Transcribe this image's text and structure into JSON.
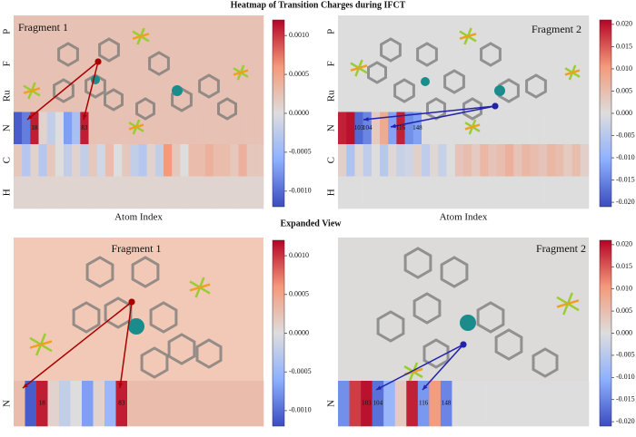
{
  "title": "Heatmap of Transition Charges during IFCT",
  "subtitle": "Expanded View",
  "chart_data": [
    {
      "type": "heatmap",
      "title": "Fragment 1",
      "xlabel": "Atom Index",
      "cmap": "coolwarm",
      "clim": [
        -0.0012,
        0.0012
      ],
      "cticks": [
        {
          "value": 0.001,
          "label": "0.0010"
        },
        {
          "value": 0.0005,
          "label": "0.0005"
        },
        {
          "value": 0,
          "label": "0.0000"
        },
        {
          "value": -0.0005,
          "label": "-0.0005"
        },
        {
          "value": -0.001,
          "label": "-0.0010"
        }
      ],
      "rows": [
        {
          "name": "P",
          "values": [
            0.00025,
            0.00025
          ]
        },
        {
          "name": "F",
          "values": [
            0.00025,
            0.00025,
            0.00025,
            0.00025,
            0.00025,
            0.00025
          ]
        },
        {
          "name": "Ru",
          "values": [
            0.00025,
            0.00025
          ]
        },
        {
          "name": "N",
          "values": [
            -0.0011,
            -0.0009,
            0.0011,
            0.0001,
            -0.0002,
            0,
            -0.0007,
            -0.0004,
            0.0011,
            0.00025,
            0.00025,
            0.00025,
            0.00025,
            0.00025,
            0.00025,
            0.00025,
            0.00025,
            0.00025,
            0.00025,
            0.00025,
            0.00025,
            0.00025,
            0.00025,
            0.00025,
            0.00025,
            0.00025,
            0.00025,
            0.00025,
            0.00025,
            0.00025
          ],
          "labels": [
            null,
            null,
            "18",
            null,
            null,
            null,
            null,
            null,
            "83",
            null,
            null,
            null,
            null,
            null,
            null,
            null,
            null,
            null,
            null,
            null,
            null,
            null,
            null,
            null,
            null,
            null,
            null,
            null,
            null,
            null
          ]
        },
        {
          "name": "C",
          "values": [
            0.0002,
            -0.0003,
            0.0001,
            -0.0003,
            0.0002,
            0,
            -0.0002,
            0.0001,
            -0.0002,
            0.0002,
            -0.0001,
            0.0003,
            0,
            0.0002,
            -0.0002,
            -0.0003,
            0.0001,
            -0.0002,
            0.0006,
            0.0002,
            0,
            0.0003,
            0.0003,
            0.0004,
            0.0003,
            0.0003,
            0.0002,
            0.0004,
            0.0002,
            0.0002
          ]
        },
        {
          "name": "H",
          "values": [
            8e-05,
            8e-05,
            8e-05,
            8e-05,
            8e-05,
            8e-05,
            8e-05,
            8e-05,
            8e-05,
            8e-05
          ]
        }
      ]
    },
    {
      "type": "heatmap",
      "title": "Fragment 2",
      "xlabel": "Atom Index",
      "cmap": "coolwarm",
      "clim": [
        -0.021,
        0.021
      ],
      "cticks": [
        {
          "value": 0.02,
          "label": "0.020"
        },
        {
          "value": 0.015,
          "label": "0.015"
        },
        {
          "value": 0.01,
          "label": "0.010"
        },
        {
          "value": 0.005,
          "label": "0.005"
        },
        {
          "value": 0,
          "label": "0.000"
        },
        {
          "value": -0.005,
          "label": "-0.005"
        },
        {
          "value": -0.01,
          "label": "-0.010"
        },
        {
          "value": -0.015,
          "label": "-0.015"
        },
        {
          "value": -0.02,
          "label": "-0.020"
        }
      ],
      "rows": [
        {
          "name": "P",
          "values": [
            0,
            0
          ]
        },
        {
          "name": "F",
          "values": [
            0,
            0,
            0,
            0,
            0,
            0
          ]
        },
        {
          "name": "Ru",
          "values": [
            0,
            0
          ]
        },
        {
          "name": "N",
          "values": [
            0.019,
            0.02,
            -0.018,
            -0.015,
            0.003,
            0.008,
            -0.012,
            0.019,
            -0.014,
            -0.012,
            0,
            0,
            0,
            0,
            0,
            0,
            0,
            0,
            0,
            0,
            0,
            0,
            0,
            0,
            0,
            0,
            0,
            0,
            0,
            0
          ],
          "labels": [
            null,
            null,
            "103",
            "104",
            null,
            null,
            null,
            "116",
            null,
            "148",
            null,
            null,
            null,
            null,
            null,
            null,
            null,
            null,
            null,
            null,
            null,
            null,
            null,
            null,
            null,
            null,
            null,
            null,
            null,
            null
          ]
        },
        {
          "name": "C",
          "values": [
            0.002,
            -0.006,
            0.001,
            -0.004,
            0,
            -0.005,
            0.001,
            -0.003,
            -0.002,
            0.002,
            -0.004,
            0.001,
            -0.003,
            0,
            0.004,
            0.005,
            0.003,
            0.006,
            0.004,
            0.005,
            0.007,
            0.004,
            0.006,
            0.005,
            0.004,
            0.006,
            0.005,
            0.003,
            0.005,
            0.002
          ]
        },
        {
          "name": "H",
          "values": [
            0,
            0,
            0,
            0,
            0,
            0,
            0,
            0,
            0,
            0
          ]
        }
      ]
    },
    {
      "type": "heatmap",
      "title": "Fragment 1",
      "cmap": "coolwarm",
      "background": "#f2c9b6",
      "clim": [
        -0.0012,
        0.0012
      ],
      "cticks": [
        {
          "value": 0.001,
          "label": "0.0010"
        },
        {
          "value": 0.0005,
          "label": "0.0005"
        },
        {
          "value": 0,
          "label": "0.0000"
        },
        {
          "value": -0.0005,
          "label": "-0.0005"
        },
        {
          "value": -0.001,
          "label": "-0.0010"
        }
      ],
      "rows": [
        {
          "name": "N",
          "values": [
            0.0003,
            -0.0011,
            0.0011,
            0.0001,
            -0.0002,
            0,
            -0.0007,
            0.0001,
            -0.0005,
            0.0011,
            0.0003,
            0.0003,
            0.0003,
            0.0003,
            0.0003,
            0.0003,
            0.0003,
            0.0003,
            0.0003,
            0.0003,
            0.0003,
            0.0003
          ],
          "labels": [
            null,
            null,
            "18",
            null,
            null,
            null,
            null,
            null,
            null,
            "83",
            null,
            null,
            null,
            null,
            null,
            null,
            null,
            null,
            null,
            null,
            null,
            null
          ]
        }
      ]
    },
    {
      "type": "heatmap",
      "title": "Fragment 2",
      "cmap": "coolwarm",
      "background": "#dcdbda",
      "clim": [
        -0.021,
        0.021
      ],
      "cticks": [
        {
          "value": 0.02,
          "label": "0.020"
        },
        {
          "value": 0.015,
          "label": "0.015"
        },
        {
          "value": 0.01,
          "label": "0.010"
        },
        {
          "value": 0.005,
          "label": "0.005"
        },
        {
          "value": 0,
          "label": "0.000"
        },
        {
          "value": -0.005,
          "label": "-0.005"
        },
        {
          "value": -0.01,
          "label": "-0.010"
        },
        {
          "value": -0.015,
          "label": "-0.015"
        },
        {
          "value": -0.02,
          "label": "-0.020"
        }
      ],
      "rows": [
        {
          "name": "N",
          "values": [
            -0.014,
            0.017,
            0.02,
            -0.017,
            -0.009,
            0.003,
            0.019,
            -0.013,
            0.01,
            -0.015,
            0,
            0,
            0,
            0,
            0,
            0,
            0,
            0,
            0,
            0,
            0,
            0
          ],
          "labels": [
            null,
            null,
            "103",
            "104",
            null,
            null,
            null,
            "116",
            null,
            "148",
            null,
            null,
            null,
            null,
            null,
            null,
            null,
            null,
            null,
            null,
            null,
            null
          ]
        }
      ]
    }
  ]
}
